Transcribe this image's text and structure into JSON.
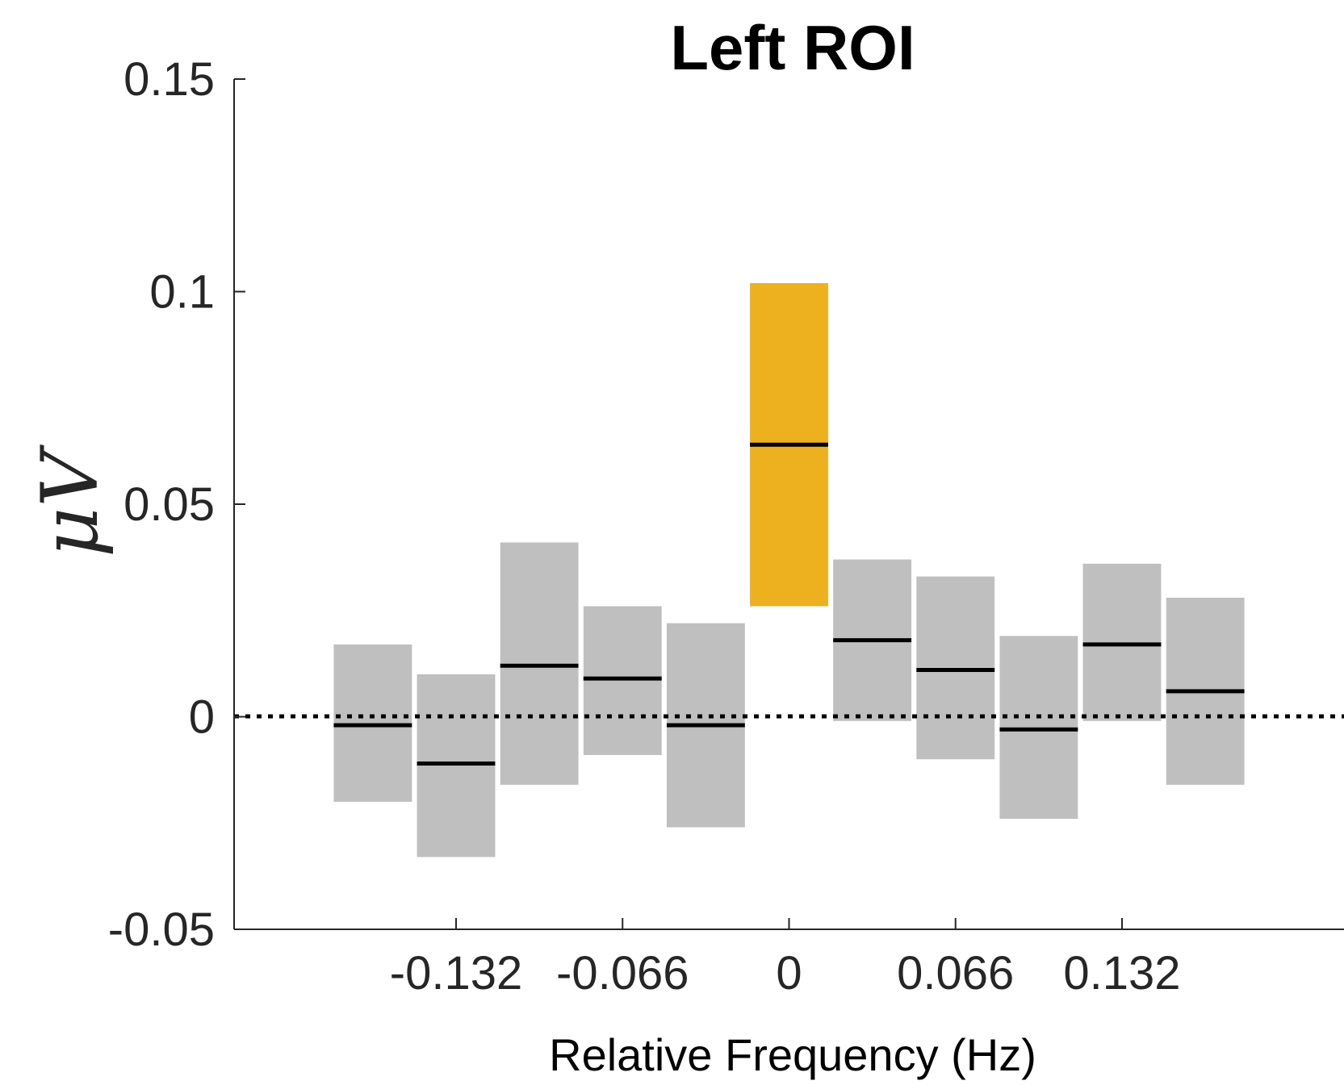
{
  "chart_data": {
    "type": "bar",
    "title": "Left ROI",
    "xlabel": "Relative Frequency (Hz)",
    "ylabel": "μV",
    "xlim": [
      -0.22,
      0.22
    ],
    "ylim": [
      -0.05,
      0.15
    ],
    "xticks": [
      -0.132,
      -0.066,
      0,
      0.066,
      0.132
    ],
    "xtick_labels": [
      "-0.132",
      "-0.066",
      "0",
      "0.066",
      "0.132"
    ],
    "yticks": [
      -0.05,
      0,
      0.05,
      0.1,
      0.15
    ],
    "ytick_labels": [
      "-0.05",
      "0",
      "0.05",
      "0.1",
      "0.15"
    ],
    "reference_line": 0,
    "bar_width": 0.031,
    "bars": [
      {
        "x": -0.165,
        "mean": -0.002,
        "low": -0.02,
        "high": 0.017,
        "highlight": false
      },
      {
        "x": -0.132,
        "mean": -0.011,
        "low": -0.033,
        "high": 0.01,
        "highlight": false
      },
      {
        "x": -0.099,
        "mean": 0.012,
        "low": -0.016,
        "high": 0.041,
        "highlight": false
      },
      {
        "x": -0.066,
        "mean": 0.009,
        "low": -0.009,
        "high": 0.026,
        "highlight": false
      },
      {
        "x": -0.033,
        "mean": -0.002,
        "low": -0.026,
        "high": 0.022,
        "highlight": false
      },
      {
        "x": 0.0,
        "mean": 0.064,
        "low": 0.026,
        "high": 0.102,
        "highlight": true
      },
      {
        "x": 0.033,
        "mean": 0.018,
        "low": -0.001,
        "high": 0.037,
        "highlight": false
      },
      {
        "x": 0.066,
        "mean": 0.011,
        "low": -0.01,
        "high": 0.033,
        "highlight": false
      },
      {
        "x": 0.099,
        "mean": -0.003,
        "low": -0.024,
        "high": 0.019,
        "highlight": false
      },
      {
        "x": 0.132,
        "mean": 0.017,
        "low": -0.001,
        "high": 0.036,
        "highlight": false
      },
      {
        "x": 0.165,
        "mean": 0.006,
        "low": -0.016,
        "high": 0.028,
        "highlight": false
      }
    ],
    "colors": {
      "bar": "#bfbfbf",
      "highlight": "#edb120",
      "mean_line": "#000000",
      "axis": "#262626"
    }
  }
}
